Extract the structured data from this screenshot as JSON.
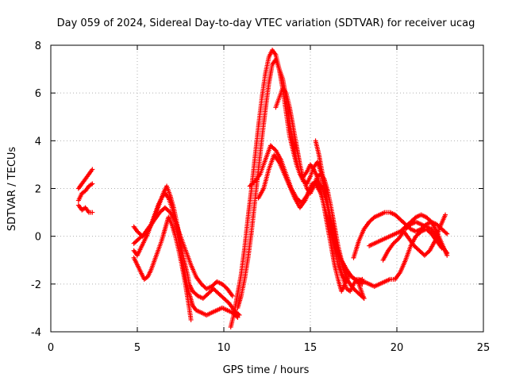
{
  "chart_data": {
    "type": "scatter",
    "title": "Day 059 of 2024, Sidereal Day-to-day VTEC variation (SDTVAR) for receiver ucag",
    "xlabel": "GPS time / hours",
    "ylabel": "SDTVAR / TECUs",
    "xlim": [
      0,
      25
    ],
    "ylim": [
      -4,
      8
    ],
    "xticks": [
      0,
      5,
      10,
      15,
      20,
      25
    ],
    "yticks": [
      -4,
      -2,
      0,
      2,
      4,
      6,
      8
    ],
    "grid": true,
    "marker": "+",
    "color": "#ff0000",
    "series": [
      {
        "name": "t1",
        "x": [
          1.6,
          1.9,
          2.1,
          2.3,
          2.4
        ],
        "y": [
          2.0,
          2.3,
          2.5,
          2.7,
          2.8
        ]
      },
      {
        "name": "t2",
        "x": [
          1.6,
          1.8,
          2.0,
          2.2,
          2.4
        ],
        "y": [
          1.5,
          1.8,
          1.9,
          2.1,
          2.2
        ]
      },
      {
        "name": "t3",
        "x": [
          1.6,
          1.8,
          2.0,
          2.2,
          2.4
        ],
        "y": [
          1.3,
          1.1,
          1.2,
          1.0,
          1.0
        ]
      },
      {
        "name": "t4",
        "x": [
          4.8,
          5.0,
          5.3,
          5.6,
          5.9,
          6.1,
          6.3,
          6.5,
          6.7,
          6.9,
          7.1,
          7.3,
          7.5,
          7.7,
          7.9,
          8.0,
          8.2,
          8.5,
          8.8,
          9.1,
          9.4,
          9.7,
          10.0,
          10.3,
          10.6,
          10.9
        ],
        "y": [
          0.4,
          0.2,
          0.0,
          0.2,
          0.6,
          1.0,
          1.4,
          1.8,
          2.1,
          1.7,
          1.2,
          0.5,
          -0.3,
          -1.0,
          -1.6,
          -2.0,
          -2.3,
          -2.5,
          -2.6,
          -2.4,
          -2.2,
          -2.4,
          -2.6,
          -2.8,
          -3.1,
          -3.3
        ]
      },
      {
        "name": "t5",
        "x": [
          4.8,
          5.0,
          5.2,
          5.4,
          5.6,
          5.8,
          6.0,
          6.2,
          6.4,
          6.6,
          6.8,
          7.0,
          7.2,
          7.4,
          7.6,
          7.8,
          8.0,
          8.2,
          8.4,
          8.7,
          9.0,
          9.3,
          9.6,
          9.9,
          10.2,
          10.5,
          10.8
        ],
        "y": [
          -0.6,
          -0.8,
          -0.5,
          -0.2,
          0.1,
          0.5,
          0.9,
          1.3,
          1.6,
          1.8,
          1.6,
          1.2,
          0.6,
          -0.2,
          -1.0,
          -1.8,
          -2.4,
          -2.9,
          -3.1,
          -3.2,
          -3.3,
          -3.2,
          -3.1,
          -3.0,
          -3.1,
          -3.2,
          -3.4
        ]
      },
      {
        "name": "t6",
        "x": [
          4.8,
          5.0,
          5.2,
          5.4,
          5.6,
          5.8,
          6.0,
          6.2,
          6.4,
          6.6,
          6.8,
          7.0,
          7.2,
          7.4,
          7.6,
          7.8,
          8.0,
          8.1
        ],
        "y": [
          -0.9,
          -1.2,
          -1.5,
          -1.8,
          -1.7,
          -1.4,
          -1.0,
          -0.6,
          -0.2,
          0.3,
          0.8,
          0.5,
          0.0,
          -0.6,
          -1.3,
          -2.1,
          -3.0,
          -3.5
        ]
      },
      {
        "name": "t7",
        "x": [
          4.8,
          5.1,
          5.4,
          5.7,
          6.0,
          6.3,
          6.6,
          6.9,
          7.2,
          7.5,
          7.8,
          8.1,
          8.4,
          8.7,
          9.0,
          9.3,
          9.6,
          9.9,
          10.2,
          10.5
        ],
        "y": [
          -0.3,
          -0.1,
          0.1,
          0.4,
          0.7,
          1.0,
          1.2,
          1.0,
          0.6,
          0.0,
          -0.6,
          -1.2,
          -1.7,
          -2.0,
          -2.2,
          -2.1,
          -1.9,
          -2.0,
          -2.2,
          -2.5
        ]
      },
      {
        "name": "t8",
        "x": [
          10.4,
          10.6,
          10.8,
          11.0,
          11.2,
          11.4,
          11.6,
          11.8,
          12.0,
          12.2,
          12.4,
          12.6,
          12.8,
          13.0,
          13.2,
          13.4,
          13.6,
          13.8,
          14.0,
          14.2,
          14.4,
          14.6,
          14.8,
          15.0,
          15.2,
          15.4,
          15.6,
          15.8,
          16.0,
          16.2,
          16.4,
          16.6,
          16.8,
          17.0,
          17.2
        ],
        "y": [
          -3.8,
          -3.2,
          -2.4,
          -1.6,
          -0.5,
          0.8,
          2.0,
          3.3,
          4.6,
          5.8,
          6.8,
          7.5,
          7.8,
          7.6,
          7.0,
          6.2,
          5.2,
          4.2,
          3.6,
          3.0,
          2.6,
          2.5,
          2.7,
          3.0,
          2.8,
          2.5,
          2.0,
          1.2,
          0.4,
          -0.4,
          -1.2,
          -1.8,
          -2.3,
          -2.0,
          -1.7
        ]
      },
      {
        "name": "t9",
        "x": [
          10.8,
          11.0,
          11.2,
          11.4,
          11.6,
          11.8,
          12.0,
          12.2,
          12.4,
          12.6,
          12.8,
          13.0,
          13.2,
          13.4,
          13.6,
          13.8,
          14.0,
          14.2,
          14.4,
          14.6,
          14.8,
          15.0,
          15.2,
          15.4,
          15.6,
          15.8,
          16.0,
          16.2,
          16.4,
          16.6,
          16.8,
          17.0
        ],
        "y": [
          -3.0,
          -2.5,
          -1.8,
          -0.9,
          0.2,
          1.5,
          2.8,
          4.1,
          5.3,
          6.4,
          7.2,
          7.4,
          7.0,
          6.6,
          5.8,
          4.8,
          3.9,
          3.2,
          2.6,
          2.3,
          2.2,
          2.5,
          2.9,
          3.1,
          2.7,
          2.0,
          1.2,
          0.3,
          -0.5,
          -1.2,
          -1.6,
          -1.8
        ]
      },
      {
        "name": "t10",
        "x": [
          11.5,
          11.8,
          12.1,
          12.4,
          12.7,
          13.0,
          13.3,
          13.6,
          13.9,
          14.2,
          14.5,
          14.8,
          15.1,
          15.4,
          15.7,
          16.0,
          16.3,
          16.6,
          16.9,
          17.2,
          17.5,
          17.8,
          18.1
        ],
        "y": [
          2.1,
          2.3,
          2.6,
          3.2,
          3.8,
          3.6,
          3.2,
          2.6,
          2.0,
          1.6,
          1.4,
          1.7,
          2.2,
          2.3,
          2.0,
          1.2,
          0.3,
          -0.6,
          -1.4,
          -1.9,
          -2.2,
          -2.4,
          -2.6
        ]
      },
      {
        "name": "t11",
        "x": [
          12.0,
          12.3,
          12.6,
          12.9,
          13.2,
          13.5,
          13.8,
          14.1,
          14.4,
          14.7,
          15.0,
          15.3,
          15.6,
          15.9,
          16.2,
          16.5,
          16.8,
          17.1,
          17.4,
          17.7,
          18.0
        ],
        "y": [
          1.6,
          2.0,
          2.8,
          3.4,
          3.1,
          2.6,
          2.1,
          1.6,
          1.2,
          1.5,
          2.0,
          2.2,
          1.8,
          1.0,
          0.2,
          -0.5,
          -1.0,
          -1.4,
          -1.7,
          -1.9,
          -1.8
        ]
      },
      {
        "name": "t12",
        "x": [
          13.0,
          13.2,
          13.4,
          13.6,
          13.8,
          14.0,
          14.2,
          14.4,
          14.6,
          14.8,
          15.0,
          15.2,
          15.4,
          15.6,
          15.8,
          16.0,
          16.2,
          16.4,
          16.6,
          16.8,
          17.0,
          17.2,
          17.4,
          17.6,
          17.8,
          18.0
        ],
        "y": [
          5.4,
          5.8,
          6.2,
          6.0,
          5.4,
          4.6,
          3.8,
          3.0,
          2.4,
          2.0,
          1.8,
          2.1,
          2.5,
          2.6,
          2.4,
          1.9,
          1.2,
          0.4,
          -0.4,
          -1.0,
          -1.4,
          -1.6,
          -1.7,
          -1.8,
          -1.9,
          -2.0
        ]
      },
      {
        "name": "t13",
        "x": [
          15.3,
          15.5,
          15.7,
          15.9,
          16.1,
          16.3,
          16.5,
          16.7,
          16.9,
          17.1,
          17.3,
          17.5,
          17.7,
          17.9,
          18.1
        ],
        "y": [
          4.0,
          3.4,
          2.6,
          1.8,
          1.0,
          0.2,
          -0.5,
          -1.2,
          -1.8,
          -2.2,
          -2.3,
          -2.0,
          -1.8,
          -2.2,
          -2.6
        ]
      },
      {
        "name": "t14",
        "x": [
          17.5,
          17.8,
          18.1,
          18.4,
          18.7,
          19.0,
          19.3,
          19.6,
          19.9,
          20.2,
          20.5,
          20.8,
          21.1,
          21.4,
          21.7,
          22.0,
          22.3,
          22.6,
          22.9
        ],
        "y": [
          -0.9,
          -0.2,
          0.3,
          0.6,
          0.8,
          0.9,
          1.0,
          1.0,
          0.9,
          0.7,
          0.5,
          0.3,
          0.2,
          0.3,
          0.5,
          0.6,
          0.5,
          0.3,
          0.1
        ]
      },
      {
        "name": "t15",
        "x": [
          17.8,
          18.1,
          18.4,
          18.7,
          19.0,
          19.3,
          19.6,
          19.9,
          20.2,
          20.5,
          20.8,
          21.1,
          21.4,
          21.7,
          22.0,
          22.3,
          22.6
        ],
        "y": [
          -1.8,
          -1.9,
          -2.0,
          -2.1,
          -2.0,
          -1.9,
          -1.8,
          -1.8,
          -1.5,
          -1.0,
          -0.4,
          0.0,
          0.2,
          0.3,
          0.1,
          -0.2,
          -0.5
        ]
      },
      {
        "name": "t16",
        "x": [
          18.4,
          18.7,
          19.0,
          19.3,
          19.6,
          19.9,
          20.2,
          20.5,
          20.8,
          21.1,
          21.4,
          21.7,
          22.0,
          22.3,
          22.6,
          22.9
        ],
        "y": [
          -0.4,
          -0.3,
          -0.2,
          -0.1,
          0.0,
          0.1,
          0.2,
          0.4,
          0.6,
          0.8,
          0.9,
          0.8,
          0.6,
          0.2,
          -0.3,
          -0.8
        ]
      },
      {
        "name": "t17",
        "x": [
          19.2,
          19.5,
          19.8,
          20.1,
          20.4,
          20.7,
          21.0,
          21.3,
          21.6,
          21.9,
          22.2,
          22.5,
          22.8
        ],
        "y": [
          -1.0,
          -0.6,
          -0.3,
          -0.1,
          0.2,
          -0.1,
          -0.4,
          -0.6,
          -0.8,
          -0.6,
          -0.2,
          0.4,
          0.9
        ]
      },
      {
        "name": "t18",
        "x": [
          20.5,
          20.8,
          21.1,
          21.4,
          21.7,
          22.0,
          22.3,
          22.6,
          22.9
        ],
        "y": [
          0.3,
          0.5,
          0.6,
          0.5,
          0.4,
          0.3,
          0.0,
          -0.4,
          -0.7
        ]
      }
    ]
  }
}
